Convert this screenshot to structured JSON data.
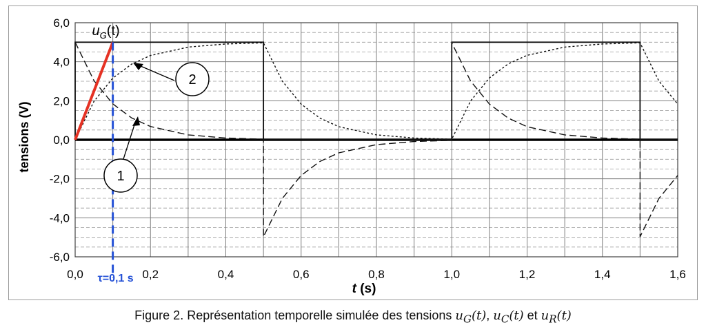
{
  "chart_data": {
    "type": "line",
    "title": "",
    "xlabel_var": "t",
    "xlabel_unit": "(s)",
    "ylabel": "tensions (V)",
    "xlim": [
      0,
      1.6
    ],
    "ylim": [
      -6,
      6
    ],
    "xticks": [
      "0,0",
      "0,2",
      "0,4",
      "0,6",
      "0,8",
      "1,0",
      "1,2",
      "1,4",
      "1,6"
    ],
    "yticks": [
      "6,0",
      "4,0",
      "2,0",
      "0,0",
      "-2,0",
      "-4,0",
      "-6,0"
    ],
    "grid": true,
    "series": [
      {
        "name": "u_G(t)",
        "style": "solid",
        "x": [
          0,
          0,
          0.5,
          0.5,
          1.0,
          1.0,
          1.5,
          1.5,
          1.6
        ],
        "y": [
          0,
          5,
          5,
          0,
          0,
          5,
          5,
          0,
          0
        ]
      },
      {
        "name": "",
        "style": "dotted",
        "x": [
          0,
          0.05,
          0.1,
          0.15,
          0.2,
          0.3,
          0.4,
          0.5,
          0.55,
          0.6,
          0.65,
          0.7,
          0.8,
          0.9,
          1.0,
          1.05,
          1.1,
          1.15,
          1.2,
          1.3,
          1.4,
          1.5,
          1.55,
          1.6
        ],
        "y": [
          0,
          1.97,
          3.16,
          3.88,
          4.32,
          4.75,
          4.91,
          4.97,
          3.01,
          1.83,
          1.11,
          0.67,
          0.25,
          0.09,
          0.03,
          1.99,
          3.17,
          3.89,
          4.33,
          4.75,
          4.91,
          4.97,
          3.01,
          1.83
        ]
      },
      {
        "name": "",
        "style": "dashed",
        "x": [
          0,
          0.05,
          0.1,
          0.15,
          0.2,
          0.3,
          0.4,
          0.5,
          0.5,
          0.55,
          0.6,
          0.65,
          0.7,
          0.8,
          0.9,
          1.0,
          1.0,
          1.05,
          1.1,
          1.15,
          1.2,
          1.3,
          1.4,
          1.5,
          1.5,
          1.55,
          1.6
        ],
        "y": [
          5,
          3.03,
          1.84,
          1.12,
          0.68,
          0.25,
          0.09,
          0.03,
          -4.97,
          -3.01,
          -1.83,
          -1.11,
          -0.67,
          -0.25,
          -0.09,
          -0.03,
          4.97,
          3.01,
          1.83,
          1.11,
          0.67,
          0.25,
          0.09,
          0.03,
          -4.97,
          -3.01,
          -1.83
        ]
      }
    ],
    "annotations": {
      "ug_label_var": "u",
      "ug_label_sub": "G",
      "ug_label_arg": "(t)",
      "tau_label": "τ=0,1 s",
      "tau_value": 0.1,
      "callout_1": "1",
      "callout_2": "2",
      "tangent_color": "#e53224",
      "tau_color": "#2451d6"
    }
  },
  "caption": {
    "prefix": "Figure 2. Représentation temporelle simulée des tensions ",
    "sym_g": "u",
    "sub_g": "G",
    "arg": "(t)",
    "sep1": ", ",
    "sym_c": "u",
    "sub_c": "C",
    "sep2": " et ",
    "sym_r": "u",
    "sub_r": "R"
  }
}
